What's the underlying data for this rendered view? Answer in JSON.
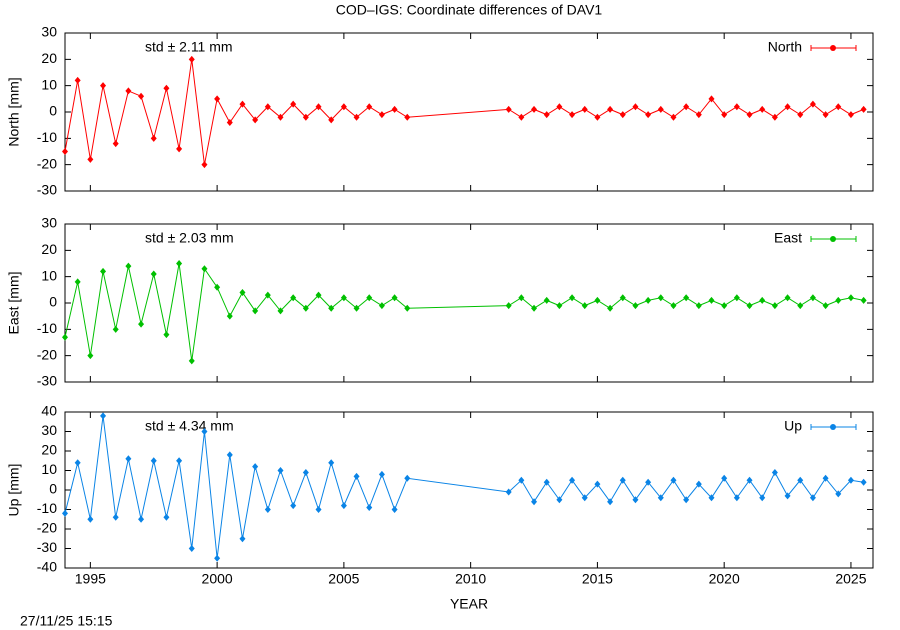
{
  "footer": "27/11/25 15:15",
  "chart_data": [
    {
      "type": "line",
      "title": "COD–IGS: Coordinate differences of DAV1",
      "ylabel": "North [mm]",
      "annotation": "std ± 2.11 mm",
      "x": [
        1994.0,
        1994.5,
        1995.0,
        1995.5,
        1996.0,
        1996.5,
        1997.0,
        1997.5,
        1998.0,
        1998.5,
        1999.0,
        1999.5,
        2000.0,
        2000.5,
        2001.0,
        2001.5,
        2002.0,
        2002.5,
        2003.0,
        2003.5,
        2004.0,
        2004.5,
        2005.0,
        2005.5,
        2006.0,
        2006.5,
        2007.0,
        2007.5,
        2011.5,
        2012.0,
        2012.5,
        2013.0,
        2013.5,
        2014.0,
        2014.5,
        2015.0,
        2015.5,
        2016.0,
        2016.5,
        2017.0,
        2017.5,
        2018.0,
        2018.5,
        2019.0,
        2019.5,
        2020.0,
        2020.5,
        2021.0,
        2021.5,
        2022.0,
        2022.5,
        2023.0,
        2023.5,
        2024.0,
        2024.5,
        2025.0,
        2025.5
      ],
      "series": [
        {
          "name": "North",
          "color": "#ff0000",
          "values": [
            -15,
            12,
            -18,
            10,
            -12,
            8,
            6,
            -10,
            9,
            -14,
            20,
            -20,
            5,
            -4,
            3,
            -3,
            2,
            -2,
            3,
            -2,
            2,
            -3,
            2,
            -2,
            2,
            -1,
            1,
            -2,
            1,
            -2,
            1,
            -1,
            2,
            -1,
            1,
            -2,
            1,
            -1,
            2,
            -1,
            1,
            -2,
            2,
            -1,
            5,
            -1,
            2,
            -1,
            1,
            -2,
            2,
            -1,
            3,
            -1,
            2,
            -1,
            1
          ]
        }
      ],
      "xlim": [
        1994.0,
        2025.87
      ],
      "xticks": [
        1995,
        2000,
        2005,
        2010,
        2015,
        2020,
        2025
      ],
      "ylim": [
        -30,
        30
      ],
      "yticks": [
        -30,
        -20,
        -10,
        0,
        10,
        20,
        30
      ]
    },
    {
      "type": "line",
      "ylabel": "East [mm]",
      "annotation": "std ± 2.03 mm",
      "x": [
        1994.0,
        1994.5,
        1995.0,
        1995.5,
        1996.0,
        1996.5,
        1997.0,
        1997.5,
        1998.0,
        1998.5,
        1999.0,
        1999.5,
        2000.0,
        2000.5,
        2001.0,
        2001.5,
        2002.0,
        2002.5,
        2003.0,
        2003.5,
        2004.0,
        2004.5,
        2005.0,
        2005.5,
        2006.0,
        2006.5,
        2007.0,
        2007.5,
        2011.5,
        2012.0,
        2012.5,
        2013.0,
        2013.5,
        2014.0,
        2014.5,
        2015.0,
        2015.5,
        2016.0,
        2016.5,
        2017.0,
        2017.5,
        2018.0,
        2018.5,
        2019.0,
        2019.5,
        2020.0,
        2020.5,
        2021.0,
        2021.5,
        2022.0,
        2022.5,
        2023.0,
        2023.5,
        2024.0,
        2024.5,
        2025.0,
        2025.5
      ],
      "series": [
        {
          "name": "East",
          "color": "#00c000",
          "values": [
            -13,
            8,
            -20,
            12,
            -10,
            14,
            -8,
            11,
            -12,
            15,
            -22,
            13,
            6,
            -5,
            4,
            -3,
            3,
            -3,
            2,
            -2,
            3,
            -2,
            2,
            -2,
            2,
            -1,
            2,
            -2,
            -1,
            2,
            -2,
            1,
            -1,
            2,
            -1,
            1,
            -2,
            2,
            -1,
            1,
            2,
            -1,
            2,
            -1,
            1,
            -1,
            2,
            -1,
            1,
            -1,
            2,
            -1,
            2,
            -1,
            1,
            2,
            1
          ]
        }
      ],
      "xlim": [
        1994.0,
        2025.87
      ],
      "xticks": [
        1995,
        2000,
        2005,
        2010,
        2015,
        2020,
        2025
      ],
      "ylim": [
        -30,
        30
      ],
      "yticks": [
        -30,
        -20,
        -10,
        0,
        10,
        20,
        30
      ]
    },
    {
      "type": "line",
      "ylabel": "Up [mm]",
      "annotation": "std ± 4.34 mm",
      "xlabel": "YEAR",
      "x": [
        1994.0,
        1994.5,
        1995.0,
        1995.5,
        1996.0,
        1996.5,
        1997.0,
        1997.5,
        1998.0,
        1998.5,
        1999.0,
        1999.5,
        2000.0,
        2000.5,
        2001.0,
        2001.5,
        2002.0,
        2002.5,
        2003.0,
        2003.5,
        2004.0,
        2004.5,
        2005.0,
        2005.5,
        2006.0,
        2006.5,
        2007.0,
        2007.5,
        2011.5,
        2012.0,
        2012.5,
        2013.0,
        2013.5,
        2014.0,
        2014.5,
        2015.0,
        2015.5,
        2016.0,
        2016.5,
        2017.0,
        2017.5,
        2018.0,
        2018.5,
        2019.0,
        2019.5,
        2020.0,
        2020.5,
        2021.0,
        2021.5,
        2022.0,
        2022.5,
        2023.0,
        2023.5,
        2024.0,
        2024.5,
        2025.0,
        2025.5
      ],
      "series": [
        {
          "name": "Up",
          "color": "#0a84e6",
          "values": [
            -12,
            14,
            -15,
            38,
            -14,
            16,
            -15,
            15,
            -14,
            15,
            -30,
            30,
            -35,
            18,
            -25,
            12,
            -10,
            10,
            -8,
            9,
            -10,
            14,
            -8,
            7,
            -9,
            8,
            -10,
            6,
            -1,
            5,
            -6,
            4,
            -5,
            5,
            -4,
            3,
            -6,
            5,
            -5,
            4,
            -4,
            5,
            -5,
            3,
            -4,
            6,
            -4,
            5,
            -4,
            9,
            -3,
            5,
            -4,
            6,
            -2,
            5,
            4
          ]
        }
      ],
      "xlim": [
        1994.0,
        2025.87
      ],
      "xticks": [
        1995,
        2000,
        2005,
        2010,
        2015,
        2020,
        2025
      ],
      "show_xtick_labels": true,
      "ylim": [
        -40,
        40
      ],
      "yticks": [
        -40,
        -30,
        -20,
        -10,
        0,
        10,
        20,
        30,
        40
      ]
    }
  ]
}
